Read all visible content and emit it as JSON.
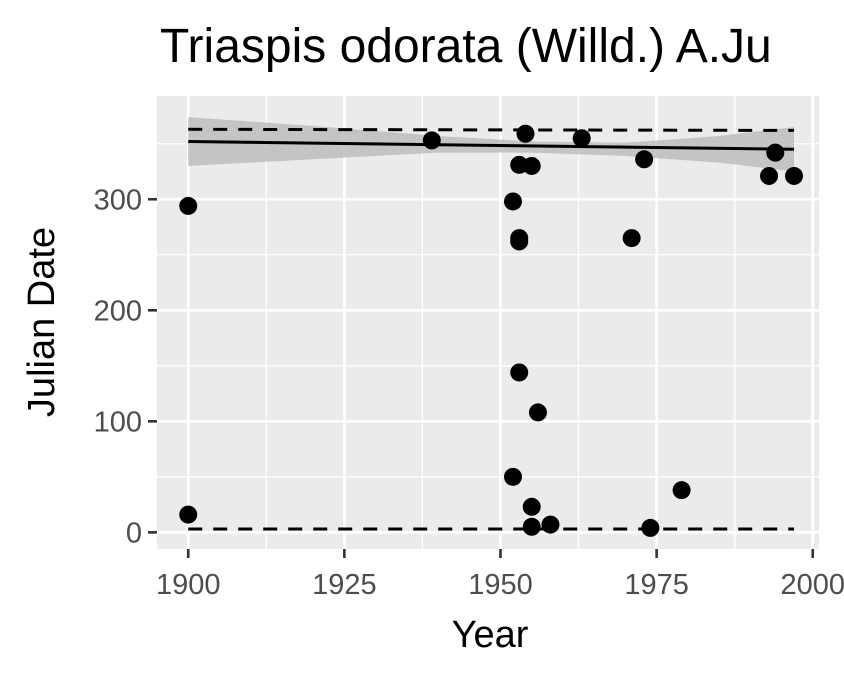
{
  "chart_data": {
    "type": "scatter",
    "title": "Triaspis odorata (Willd.) A.Ju",
    "xlabel": "Year",
    "ylabel": "Julian Date",
    "xlim": [
      1895,
      2001
    ],
    "ylim": [
      -15,
      393
    ],
    "x_ticks": [
      1900,
      1925,
      1950,
      1975,
      2000
    ],
    "x_tick_labels": [
      "1900",
      "1925",
      "1950",
      "1975",
      "2000"
    ],
    "y_ticks": [
      0,
      100,
      200,
      300
    ],
    "y_tick_labels": [
      "0",
      "100",
      "200",
      "300"
    ],
    "grid": true,
    "legend": "none",
    "colors": {
      "panel_background": "#ebebeb",
      "grid": "#ffffff",
      "points": "#000000",
      "trend_line": "#000000",
      "confidence_band": "#bdbdbd",
      "quantile_lines": "#000000"
    },
    "points": [
      {
        "x": 1900,
        "y": 294
      },
      {
        "x": 1900,
        "y": 16
      },
      {
        "x": 1939,
        "y": 353
      },
      {
        "x": 1952,
        "y": 298
      },
      {
        "x": 1952,
        "y": 50
      },
      {
        "x": 1953,
        "y": 331
      },
      {
        "x": 1953,
        "y": 265
      },
      {
        "x": 1953,
        "y": 262
      },
      {
        "x": 1953,
        "y": 144
      },
      {
        "x": 1954,
        "y": 359
      },
      {
        "x": 1955,
        "y": 330
      },
      {
        "x": 1955,
        "y": 23
      },
      {
        "x": 1955,
        "y": 5
      },
      {
        "x": 1956,
        "y": 108
      },
      {
        "x": 1958,
        "y": 7
      },
      {
        "x": 1963,
        "y": 355
      },
      {
        "x": 1971,
        "y": 265
      },
      {
        "x": 1973,
        "y": 336
      },
      {
        "x": 1974,
        "y": 4
      },
      {
        "x": 1979,
        "y": 38
      },
      {
        "x": 1993,
        "y": 321
      },
      {
        "x": 1994,
        "y": 342
      },
      {
        "x": 1997,
        "y": 321
      }
    ],
    "trend_line": {
      "x": [
        1900,
        1997
      ],
      "y": [
        352,
        345
      ]
    },
    "confidence_band": {
      "x": [
        1900,
        1920,
        1940,
        1955,
        1970,
        1985,
        1997
      ],
      "upper": [
        374,
        366,
        357,
        352,
        351,
        357,
        365
      ],
      "lower": [
        330,
        336,
        342,
        342,
        339,
        333,
        325
      ]
    },
    "quantile_upper": {
      "x": [
        1900,
        1997
      ],
      "y": [
        363,
        362
      ]
    },
    "quantile_lower": {
      "x": [
        1900,
        1997
      ],
      "y": [
        3,
        3
      ]
    }
  }
}
